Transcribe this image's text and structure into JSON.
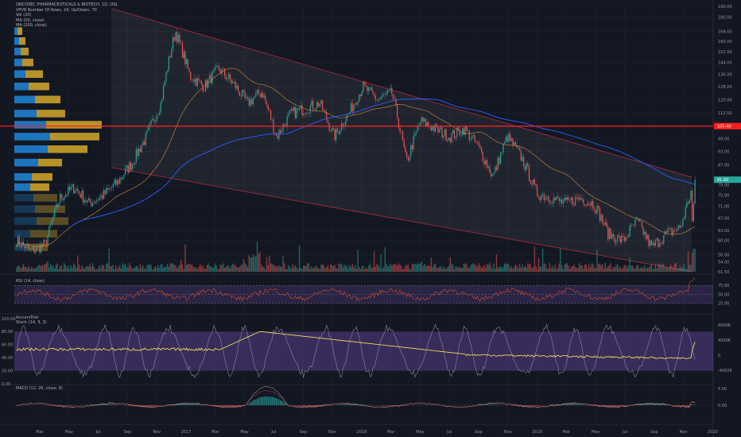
{
  "chart_data": {
    "type": "candlestick",
    "title": "ONCOSEC PHARMACEUTICALS & BIOTECH, 1D, OSL",
    "indicators": [
      "VPVR Number Of Rows, 24, Up/Down, 70",
      "Vol (20)",
      "MA (50, close)",
      "MA (200, close)"
    ],
    "price_axis": {
      "ticks": [
        "190.00",
        "180.00",
        "168.00",
        "160.00",
        "152.00",
        "144.00",
        "136.00",
        "128.00",
        "120.00",
        "112.50",
        "105.00",
        "99.00",
        "93.00",
        "87.00",
        "79.00",
        "75.00",
        "71.00",
        "67.00",
        "63.00",
        "60.00",
        "56.00",
        "54.00",
        "51.50"
      ],
      "range": [
        51.5,
        190
      ],
      "scale": "log",
      "current_price_label": "81.00",
      "resistance_label": "105.40",
      "resistance_value": 105.4
    },
    "time_axis": {
      "labels": [
        "Mar",
        "May",
        "Jul",
        "Sep",
        "Nov",
        "2017",
        "Mar",
        "May",
        "Jul",
        "Sep",
        "Nov",
        "2018",
        "Mar",
        "May",
        "Jul",
        "Sep",
        "Nov",
        "2019",
        "Mar",
        "May",
        "Jul",
        "Sep",
        "Nov",
        "2020"
      ]
    },
    "price_series_approx": [
      {
        "t": "2016-01",
        "v": 60
      },
      {
        "t": "2016-02",
        "v": 57
      },
      {
        "t": "2016-03",
        "v": 59
      },
      {
        "t": "2016-04",
        "v": 74
      },
      {
        "t": "2016-05",
        "v": 78
      },
      {
        "t": "2016-06",
        "v": 72
      },
      {
        "t": "2016-07",
        "v": 75
      },
      {
        "t": "2016-08",
        "v": 80
      },
      {
        "t": "2016-09",
        "v": 88
      },
      {
        "t": "2016-10",
        "v": 100
      },
      {
        "t": "2016-11",
        "v": 118
      },
      {
        "t": "2016-12",
        "v": 168
      },
      {
        "t": "2017-01",
        "v": 135
      },
      {
        "t": "2017-02",
        "v": 128
      },
      {
        "t": "2017-03",
        "v": 140
      },
      {
        "t": "2017-04",
        "v": 130
      },
      {
        "t": "2017-05",
        "v": 118
      },
      {
        "t": "2017-06",
        "v": 125
      },
      {
        "t": "2017-07",
        "v": 100
      },
      {
        "t": "2017-08",
        "v": 112
      },
      {
        "t": "2017-09",
        "v": 115
      },
      {
        "t": "2017-10",
        "v": 118
      },
      {
        "t": "2017-11",
        "v": 100
      },
      {
        "t": "2017-12",
        "v": 112
      },
      {
        "t": "2018-01",
        "v": 128
      },
      {
        "t": "2018-02",
        "v": 120
      },
      {
        "t": "2018-03",
        "v": 124
      },
      {
        "t": "2018-04",
        "v": 88
      },
      {
        "t": "2018-05",
        "v": 108
      },
      {
        "t": "2018-06",
        "v": 104
      },
      {
        "t": "2018-07",
        "v": 100
      },
      {
        "t": "2018-08",
        "v": 104
      },
      {
        "t": "2018-09",
        "v": 95
      },
      {
        "t": "2018-10",
        "v": 82
      },
      {
        "t": "2018-11",
        "v": 100
      },
      {
        "t": "2018-12",
        "v": 90
      },
      {
        "t": "2019-01",
        "v": 76
      },
      {
        "t": "2019-02",
        "v": 74
      },
      {
        "t": "2019-03",
        "v": 72
      },
      {
        "t": "2019-04",
        "v": 74
      },
      {
        "t": "2019-05",
        "v": 72
      },
      {
        "t": "2019-06",
        "v": 62
      },
      {
        "t": "2019-07",
        "v": 60
      },
      {
        "t": "2019-08",
        "v": 66
      },
      {
        "t": "2019-09",
        "v": 58
      },
      {
        "t": "2019-10",
        "v": 62
      },
      {
        "t": "2019-11",
        "v": 64
      },
      {
        "t": "2019-12",
        "v": 81
      }
    ],
    "rsi": {
      "label": "RSI (14, close)",
      "ticks": [
        "75.00",
        "50.00",
        "25.00"
      ],
      "upper": 75,
      "lower": 25
    },
    "stoch": {
      "labels": [
        "Accum/Dist",
        "Stoch (14, 3, 3)"
      ],
      "left_ticks": [
        "100.00",
        "80.00",
        "60.00",
        "40.00",
        "20.00",
        "0.00"
      ],
      "right_ticks": [
        "8000K",
        "4000K",
        "0",
        "-4000K"
      ]
    },
    "macd": {
      "label": "MACD (12, 26, close, 9)",
      "ticks": [
        "5.00",
        "0.00"
      ]
    },
    "colors": {
      "background": "#131722",
      "up": "#26a69a",
      "down": "#ef5350",
      "ma50": "#d98c3b",
      "ma200": "#2962ff",
      "resistance": "#ff1e1e",
      "channel": "#9c2b3c",
      "vpvr_up": "#2196f3",
      "vpvr_down": "#e0b32c",
      "rsi_line": "#d0502d",
      "rsi_band": "#7e57c2",
      "ad_line": "#ffee58",
      "stoch_k": "#9e9ab8",
      "macd_line": "#bdbdbd",
      "signal_line": "#ef5350"
    }
  }
}
